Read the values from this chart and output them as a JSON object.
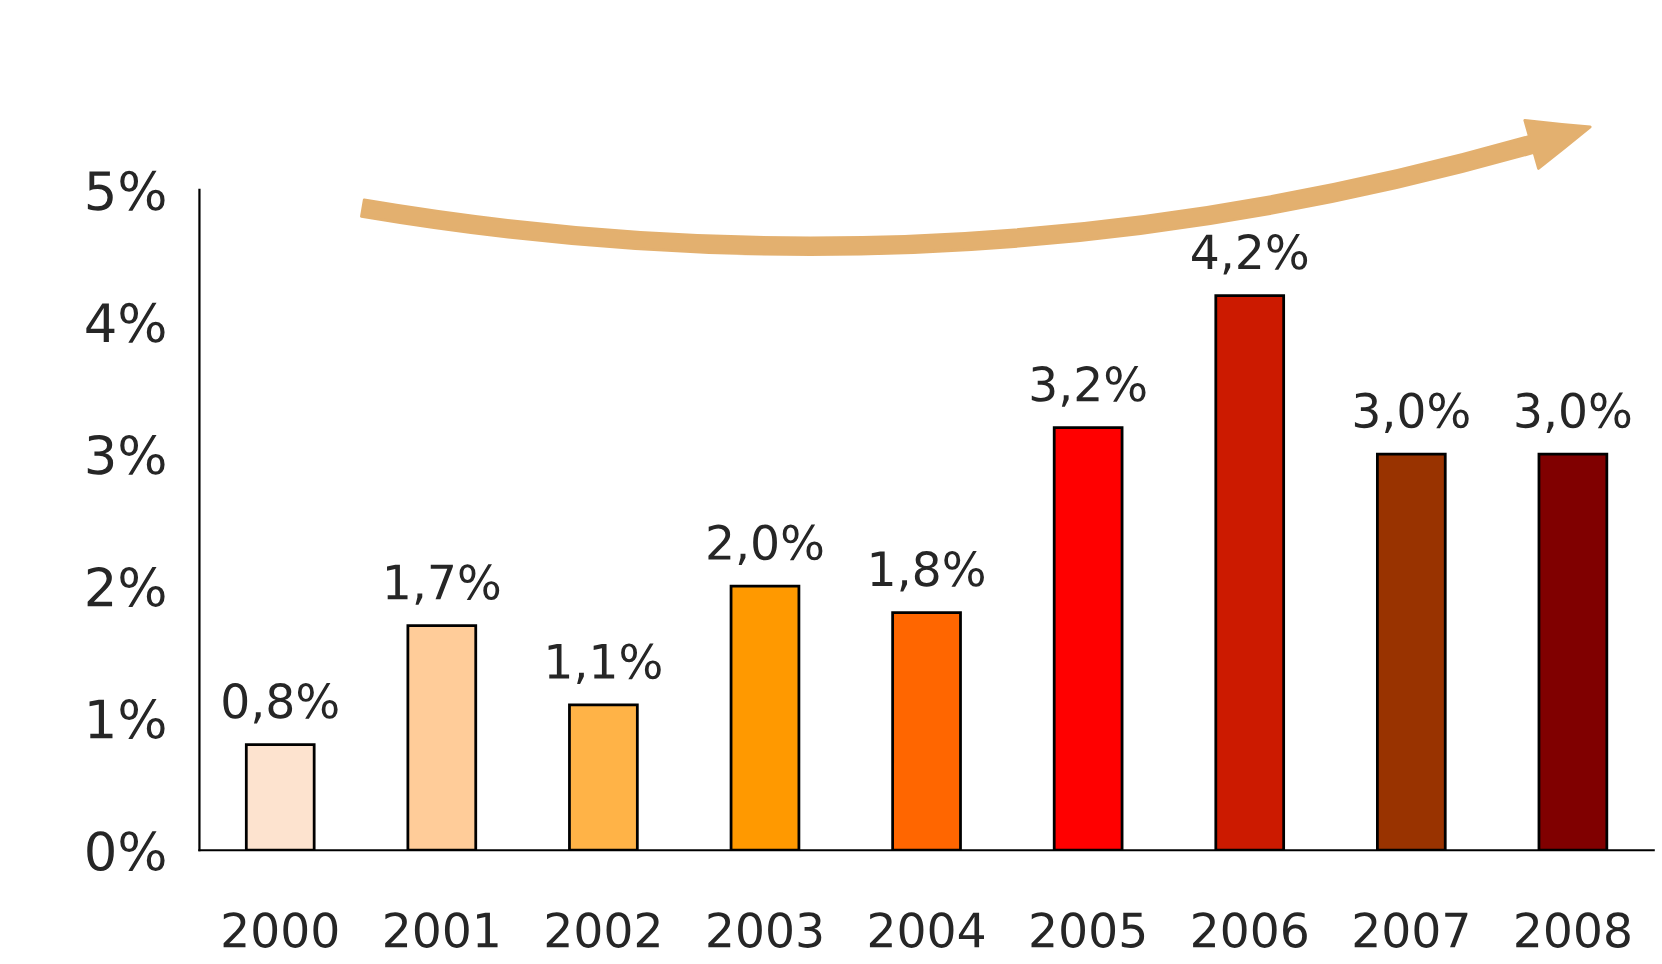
{
  "chart_data": {
    "type": "bar",
    "categories": [
      "2000",
      "2001",
      "2002",
      "2003",
      "2004",
      "2005",
      "2006",
      "2007",
      "2008"
    ],
    "values": [
      0.8,
      1.7,
      1.1,
      2.0,
      1.8,
      3.2,
      4.2,
      3.0,
      3.0
    ],
    "value_labels": [
      "0,8%",
      "1,7%",
      "1,1%",
      "2,0%",
      "1,8%",
      "3,2%",
      "4,2%",
      "3,0%",
      "3,0%"
    ],
    "colors": [
      "#fde3cf",
      "#ffcc99",
      "#ffb347",
      "#ff9900",
      "#ff6600",
      "#ff0000",
      "#cc1a00",
      "#993300",
      "#800000"
    ],
    "ylim": [
      0,
      5
    ],
    "yticks": [
      {
        "value": 0,
        "label": "0%"
      },
      {
        "value": 1,
        "label": "1%"
      },
      {
        "value": 2,
        "label": "2%"
      },
      {
        "value": 3,
        "label": "3%"
      },
      {
        "value": 4,
        "label": "4%"
      },
      {
        "value": 5,
        "label": "5%"
      }
    ],
    "grid": false,
    "legend": false
  }
}
